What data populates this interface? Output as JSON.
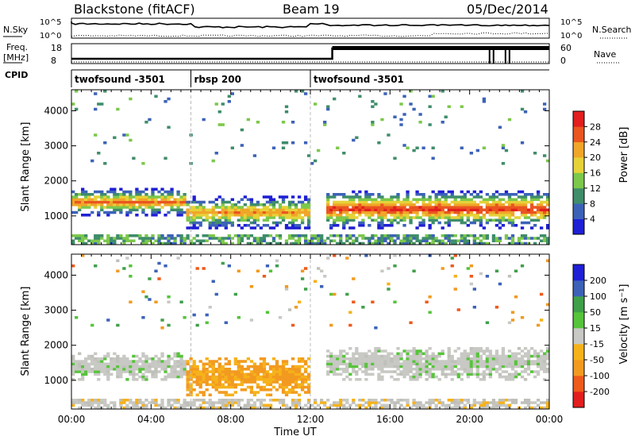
{
  "header": {
    "radar": "Blackstone (fitACF)",
    "beam": "Beam 19",
    "date": "05/Dec/2014"
  },
  "top_panels": {
    "nsky_label": "N.Sky",
    "nsky_ticks": [
      "10^5",
      "10^0"
    ],
    "nsearch_label": "N.Search",
    "nsearch_ticks": [
      "10^5",
      "10^0"
    ],
    "freq_label_1": "Freq.",
    "freq_label_2": "[MHz]",
    "freq_ticks": [
      "18",
      "8"
    ],
    "nave_label": "Nave",
    "nave_ticks": [
      "60",
      "0"
    ],
    "cpid_label": "CPID",
    "cpid_segments": [
      {
        "name": "twofsound -3501",
        "start": 0.0,
        "end": 6.0
      },
      {
        "name": "rbsp 200",
        "start": 6.0,
        "end": 12.0
      },
      {
        "name": "twofsound -3501",
        "start": 12.0,
        "end": 24.0
      }
    ]
  },
  "colors": {
    "power_scale": [
      "#1f1fd6",
      "#3c62b8",
      "#3f8d6a",
      "#7cc84b",
      "#e6d238",
      "#f0a628",
      "#ea5520",
      "#e21e1e"
    ],
    "velocity_scale": [
      "#e21e1e",
      "#ee5a1c",
      "#f29a20",
      "#f6b21a",
      "#c0c0ba",
      "#c8c8c4",
      "#56c43a",
      "#3fa04a",
      "#3c62b8",
      "#1f1fd6"
    ]
  },
  "chart_data": [
    {
      "type": "heatmap",
      "name": "power",
      "xlabel": "Time UT",
      "ylabel": "Slant Range [km]",
      "x_ticks": [
        "00:00",
        "04:00",
        "08:00",
        "12:00",
        "16:00",
        "20:00",
        "00:00"
      ],
      "x_tick_values": [
        0,
        4,
        8,
        12,
        16,
        20,
        24
      ],
      "xlim": [
        0,
        24
      ],
      "y_ticks": [
        "1000",
        "2000",
        "3000",
        "4000"
      ],
      "y_tick_values": [
        1000,
        2000,
        3000,
        4000
      ],
      "ylim": [
        180,
        4600
      ],
      "colorbar_label": "Power [dB]",
      "colorbar_ticks": [
        "4",
        "8",
        "12",
        "16",
        "20",
        "24",
        "28"
      ],
      "colorbar_range": [
        0,
        32
      ],
      "regions": [
        {
          "t0": 0.0,
          "t1": 5.8,
          "r_center": 1400,
          "r_width": 500,
          "peak": 24
        },
        {
          "t0": 5.8,
          "t1": 12.0,
          "r_center": 1100,
          "r_width": 600,
          "peak": 22
        },
        {
          "t0": 12.8,
          "t1": 24.0,
          "r_center": 1200,
          "r_width": 700,
          "peak": 28
        }
      ]
    },
    {
      "type": "heatmap",
      "name": "velocity",
      "xlabel": "Time UT",
      "ylabel": "Slant Range [km]",
      "x_ticks": [
        "00:00",
        "04:00",
        "08:00",
        "12:00",
        "16:00",
        "20:00",
        "00:00"
      ],
      "x_tick_values": [
        0,
        4,
        8,
        12,
        16,
        20,
        24
      ],
      "xlim": [
        0,
        24
      ],
      "y_ticks": [
        "1000",
        "2000",
        "3000",
        "4000"
      ],
      "y_tick_values": [
        1000,
        2000,
        3000,
        4000
      ],
      "ylim": [
        180,
        4600
      ],
      "colorbar_label": "Velocity [m s⁻¹]",
      "colorbar_ticks": [
        "-200",
        "-100",
        "-50",
        "-15",
        "15",
        "50",
        "100",
        "200"
      ],
      "colorbar_range": [
        -250,
        250
      ],
      "regions": [
        {
          "t0": 0.0,
          "t1": 5.8,
          "r_center": 1400,
          "r_width": 500,
          "velocity": 0
        },
        {
          "t0": 5.8,
          "t1": 12.0,
          "r_center": 1100,
          "r_width": 700,
          "velocity": -55
        },
        {
          "t0": 12.8,
          "t1": 24.0,
          "r_center": 1500,
          "r_width": 600,
          "velocity": 0
        }
      ]
    }
  ]
}
